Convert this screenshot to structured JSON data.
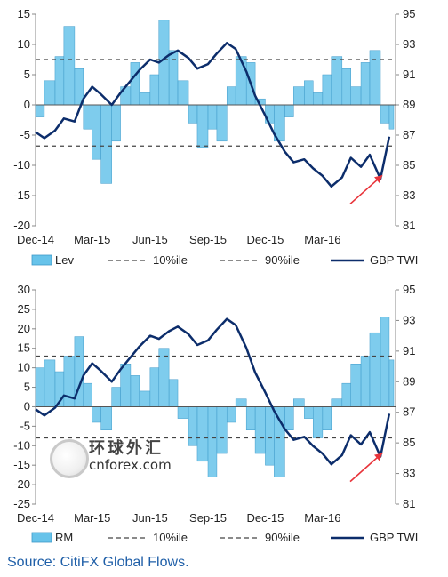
{
  "colors": {
    "fill": "#67c3ea",
    "line": "#0c2d6b",
    "dashed": "#444444",
    "arrow": "#e8333a",
    "source": "#1f5fa8"
  },
  "source": "Source: CitiFX Global Flows.",
  "watermark": {
    "chinese": "环球外汇",
    "site": "cnforex.com"
  },
  "chart_data": [
    {
      "type": "area",
      "x_tick_labels": [
        "Dec-14",
        "Mar-15",
        "Jun-15",
        "Sep-15",
        "Dec-15",
        "Mar-16"
      ],
      "y_left_ticks": [
        "15",
        "10",
        "5",
        "0",
        "-5",
        "-10",
        "-15",
        "-20"
      ],
      "y_left_range": [
        -20,
        15
      ],
      "y_right_ticks": [
        "95",
        "93",
        "91",
        "89",
        "87",
        "85",
        "83",
        "81"
      ],
      "y_right_range": [
        81,
        95
      ],
      "legend": [
        "Lev",
        "10%ile",
        "90%ile",
        "GBP TWI"
      ],
      "legend_position": "bottom",
      "pct10": -6.8,
      "pct90": 7.5,
      "dates": [
        "2014-12-01",
        "2014-12-15",
        "2015-01-01",
        "2015-01-15",
        "2015-02-01",
        "2015-02-15",
        "2015-03-01",
        "2015-03-15",
        "2015-04-01",
        "2015-04-15",
        "2015-05-01",
        "2015-05-15",
        "2015-06-01",
        "2015-06-15",
        "2015-07-01",
        "2015-07-15",
        "2015-08-01",
        "2015-08-15",
        "2015-09-01",
        "2015-09-15",
        "2015-10-01",
        "2015-10-15",
        "2015-11-01",
        "2015-11-15",
        "2015-12-01",
        "2015-12-15",
        "2016-01-01",
        "2016-01-15",
        "2016-02-01",
        "2016-02-15",
        "2016-03-01",
        "2016-03-15",
        "2016-04-01",
        "2016-04-15",
        "2016-05-01",
        "2016-05-15",
        "2016-06-01",
        "2016-06-15"
      ],
      "series": [
        {
          "name": "Lev",
          "axis": "left",
          "values": [
            -2,
            4,
            8,
            13,
            6,
            -4,
            -9,
            -13,
            -6,
            3,
            7,
            2,
            5,
            14,
            9,
            4,
            -3,
            -7,
            -4,
            -6,
            3,
            8,
            7,
            1,
            -3,
            -6,
            -2,
            3,
            4,
            2,
            5,
            8,
            6,
            3,
            7,
            9,
            -3,
            -4
          ]
        },
        {
          "name": "GBP TWI",
          "axis": "right",
          "values": [
            87.2,
            86.8,
            87.3,
            88.1,
            87.9,
            89.4,
            90.2,
            89.7,
            89.0,
            89.8,
            90.6,
            91.3,
            92.0,
            91.8,
            92.3,
            92.6,
            92.1,
            91.4,
            91.7,
            92.4,
            93.1,
            92.7,
            91.2,
            89.6,
            88.3,
            87.1,
            85.9,
            85.2,
            85.4,
            84.8,
            84.3,
            83.6,
            84.2,
            85.5,
            84.9,
            85.7,
            84.1,
            86.9
          ]
        }
      ]
    },
    {
      "type": "area",
      "x_tick_labels": [
        "Dec-14",
        "Mar-15",
        "Jun-15",
        "Sep-15",
        "Dec-15",
        "Mar-16"
      ],
      "y_left_ticks": [
        "30",
        "25",
        "20",
        "15",
        "10",
        "5",
        "0",
        "-5",
        "-10",
        "-15",
        "-20",
        "-25"
      ],
      "y_left_range": [
        -25,
        30
      ],
      "y_right_ticks": [
        "95",
        "93",
        "91",
        "89",
        "87",
        "85",
        "83",
        "81"
      ],
      "y_right_range": [
        81,
        95
      ],
      "legend": [
        "RM",
        "10%ile",
        "90%ile",
        "GBP TWI"
      ],
      "legend_position": "bottom",
      "pct10": -8,
      "pct90": 13,
      "dates": [
        "2014-12-01",
        "2014-12-15",
        "2015-01-01",
        "2015-01-15",
        "2015-02-01",
        "2015-02-15",
        "2015-03-01",
        "2015-03-15",
        "2015-04-01",
        "2015-04-15",
        "2015-05-01",
        "2015-05-15",
        "2015-06-01",
        "2015-06-15",
        "2015-07-01",
        "2015-07-15",
        "2015-08-01",
        "2015-08-15",
        "2015-09-01",
        "2015-09-15",
        "2015-10-01",
        "2015-10-15",
        "2015-11-01",
        "2015-11-15",
        "2015-12-01",
        "2015-12-15",
        "2016-01-01",
        "2016-01-15",
        "2016-02-01",
        "2016-02-15",
        "2016-03-01",
        "2016-03-15",
        "2016-04-01",
        "2016-04-15",
        "2016-05-01",
        "2016-05-15",
        "2016-06-01",
        "2016-06-15"
      ],
      "series": [
        {
          "name": "RM",
          "axis": "left",
          "values": [
            10,
            12,
            9,
            13,
            18,
            6,
            -4,
            -6,
            5,
            11,
            8,
            4,
            10,
            15,
            7,
            -3,
            -10,
            -14,
            -18,
            -12,
            -4,
            2,
            -6,
            -12,
            -15,
            -18,
            -6,
            2,
            -3,
            -8,
            -6,
            2,
            6,
            11,
            13,
            19,
            23,
            12
          ]
        },
        {
          "name": "GBP TWI",
          "axis": "right",
          "values": [
            87.2,
            86.8,
            87.3,
            88.1,
            87.9,
            89.4,
            90.2,
            89.7,
            89.0,
            89.8,
            90.6,
            91.3,
            92.0,
            91.8,
            92.3,
            92.6,
            92.1,
            91.4,
            91.7,
            92.4,
            93.1,
            92.7,
            91.2,
            89.6,
            88.3,
            87.1,
            85.9,
            85.2,
            85.4,
            84.8,
            84.3,
            83.6,
            84.2,
            85.5,
            84.9,
            85.7,
            84.1,
            86.9
          ]
        }
      ]
    }
  ]
}
